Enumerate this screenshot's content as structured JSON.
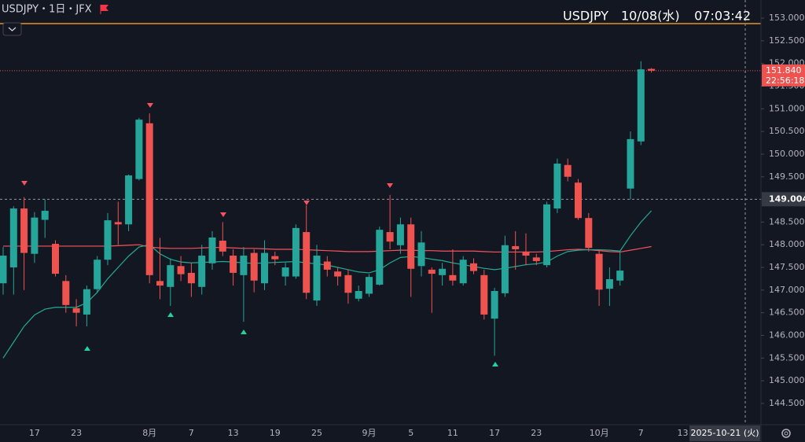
{
  "chart_data": {
    "type": "candlestick",
    "title": "USDJPY・1日・JFX",
    "header": {
      "symbol": "USDJPY",
      "date": "10/08(水)",
      "time": "07:03:42"
    },
    "categories": [
      null,
      null,
      null,
      "17",
      null,
      null,
      null,
      "23",
      null,
      null,
      null,
      null,
      null,
      null,
      "8月",
      null,
      null,
      null,
      "7",
      null,
      null,
      null,
      "13",
      null,
      null,
      null,
      "19",
      null,
      null,
      null,
      "25",
      null,
      null,
      null,
      null,
      "9月",
      null,
      null,
      null,
      "5",
      null,
      null,
      null,
      "11",
      null,
      null,
      null,
      "17",
      null,
      null,
      null,
      "23",
      null,
      null,
      null,
      null,
      null,
      "10月",
      null,
      null,
      null,
      "7",
      null,
      null,
      null,
      "13"
    ],
    "open": [
      147.15,
      147.5,
      148.8,
      147.8,
      148.55,
      148.02,
      147.2,
      146.6,
      146.46,
      147.02,
      147.67,
      148.5,
      148.45,
      149.45,
      150.68,
      147.2,
      147.07,
      147.53,
      147.38,
      147.07,
      147.59,
      148.09,
      147.76,
      147.33,
      147.82,
      147.15,
      147.75,
      147.3,
      147.3,
      148.28,
      146.77,
      147.63,
      147.41,
      147.33,
      146.81,
      146.92,
      147.12,
      148.28,
      147.99,
      148.45,
      147.53,
      147.45,
      147.33,
      147.33,
      147.15,
      147.59,
      147.33,
      146.37,
      146.93,
      147.97,
      147.85,
      147.72,
      147.55,
      148.8,
      149.76,
      149.37,
      148.59,
      147.8,
      147.03,
      147.21,
      149.24,
      150.28,
      151.88,
      null,
      null,
      null
    ],
    "high": [
      147.95,
      148.85,
      149.05,
      148.72,
      149.0,
      148.1,
      147.33,
      146.8,
      147.1,
      147.75,
      148.7,
      148.95,
      149.55,
      150.8,
      150.9,
      148.15,
      147.7,
      147.75,
      147.6,
      148.0,
      148.3,
      148.5,
      147.9,
      147.95,
      147.9,
      148.1,
      147.85,
      147.6,
      148.45,
      148.87,
      148.0,
      147.75,
      147.5,
      147.45,
      147.1,
      147.35,
      148.4,
      149.1,
      148.6,
      148.6,
      148.3,
      147.5,
      147.6,
      147.9,
      147.75,
      147.7,
      147.45,
      147.05,
      148.2,
      148.3,
      148.25,
      147.8,
      148.95,
      149.9,
      149.9,
      149.45,
      148.7,
      147.9,
      147.5,
      147.85,
      150.5,
      152.05,
      151.9,
      null,
      null,
      null
    ],
    "low": [
      146.9,
      146.9,
      147.0,
      147.6,
      148.15,
      147.3,
      146.5,
      146.2,
      146.2,
      146.95,
      147.55,
      148.0,
      148.3,
      149.42,
      147.15,
      146.8,
      146.65,
      147.2,
      146.85,
      146.9,
      147.45,
      147.75,
      147.1,
      146.3,
      146.95,
      147.0,
      147.55,
      147.1,
      147.25,
      146.8,
      146.65,
      147.3,
      147.1,
      146.7,
      146.75,
      146.85,
      147.1,
      147.9,
      147.8,
      146.85,
      147.3,
      146.5,
      147.1,
      147.1,
      147.1,
      147.35,
      146.35,
      145.55,
      146.85,
      147.45,
      147.55,
      147.55,
      147.5,
      148.7,
      149.4,
      148.55,
      147.85,
      146.65,
      146.65,
      147.1,
      149.0,
      150.2,
      151.8,
      null,
      null,
      null
    ],
    "close": [
      147.76,
      148.8,
      147.82,
      148.6,
      148.75,
      147.36,
      146.67,
      146.5,
      147.02,
      147.67,
      148.54,
      148.45,
      149.53,
      150.76,
      147.33,
      147.1,
      147.55,
      147.35,
      147.15,
      147.76,
      148.16,
      147.85,
      147.38,
      147.76,
      147.21,
      147.82,
      147.68,
      147.5,
      148.37,
      146.94,
      147.76,
      147.45,
      147.3,
      146.94,
      146.98,
      147.29,
      148.33,
      148.07,
      148.45,
      147.47,
      148.05,
      147.36,
      147.47,
      147.21,
      147.67,
      147.42,
      146.46,
      146.98,
      147.99,
      147.9,
      147.76,
      147.64,
      148.89,
      149.79,
      149.5,
      148.59,
      147.93,
      147.01,
      147.24,
      147.43,
      150.33,
      151.87,
      151.84,
      null,
      null,
      null
    ],
    "up_color": "#26a69a",
    "down_color": "#ef5350",
    "ma_lines": [
      {
        "color": "#f7525f",
        "values": [
          147.97,
          147.97,
          147.97,
          147.97,
          147.97,
          147.97,
          147.97,
          147.97,
          147.97,
          147.97,
          147.97,
          147.98,
          147.99,
          148.0,
          147.95,
          147.93,
          147.92,
          147.92,
          147.92,
          147.93,
          147.94,
          147.94,
          147.93,
          147.92,
          147.92,
          147.91,
          147.9,
          147.9,
          147.9,
          147.89,
          147.88,
          147.87,
          147.86,
          147.85,
          147.85,
          147.85,
          147.86,
          147.87,
          147.88,
          147.88,
          147.87,
          147.87,
          147.86,
          147.86,
          147.86,
          147.86,
          147.85,
          147.84,
          147.84,
          147.84,
          147.84,
          147.84,
          147.85,
          147.87,
          147.89,
          147.9,
          147.89,
          147.87,
          147.85,
          147.84,
          147.88,
          147.92,
          147.96,
          null,
          null,
          null
        ]
      },
      {
        "color": "#22ab94",
        "values": [
          145.5,
          145.85,
          146.2,
          146.45,
          146.58,
          146.62,
          146.62,
          146.62,
          146.72,
          146.95,
          147.25,
          147.5,
          147.75,
          147.95,
          148.0,
          147.8,
          147.68,
          147.62,
          147.6,
          147.61,
          147.62,
          147.63,
          147.62,
          147.6,
          147.59,
          147.6,
          147.61,
          147.62,
          147.63,
          147.6,
          147.58,
          147.55,
          147.5,
          147.45,
          147.4,
          147.38,
          147.45,
          147.6,
          147.72,
          147.74,
          147.72,
          147.68,
          147.65,
          147.6,
          147.56,
          147.52,
          147.48,
          147.45,
          147.48,
          147.52,
          147.56,
          147.58,
          147.62,
          147.75,
          147.85,
          147.88,
          147.89,
          147.89,
          147.88,
          147.86,
          148.2,
          148.5,
          148.75,
          null,
          null,
          null
        ]
      }
    ],
    "ylim": [
      144.03,
      153.4
    ],
    "yticks": [
      {
        "value": 144.5,
        "label": "144.500"
      },
      {
        "value": 145,
        "label": "145.000"
      },
      {
        "value": 145.5,
        "label": "145.500"
      },
      {
        "value": 146,
        "label": "146.000"
      },
      {
        "value": 146.5,
        "label": "146.500"
      },
      {
        "value": 147,
        "label": "147.000"
      },
      {
        "value": 147.5,
        "label": "147.500"
      },
      {
        "value": 148,
        "label": "148.000"
      },
      {
        "value": 148.5,
        "label": "148.500"
      },
      {
        "value": 149,
        "label": "149.000"
      },
      {
        "value": 149.5,
        "label": "149.500"
      },
      {
        "value": 150,
        "label": "150.000"
      },
      {
        "value": 150.5,
        "label": "150.500"
      },
      {
        "value": 151,
        "label": "151.000"
      },
      {
        "value": 151.5,
        "label": "151.500"
      },
      {
        "value": 152,
        "label": "152.000"
      },
      {
        "value": 152.5,
        "label": "152.500"
      },
      {
        "value": 153,
        "label": "153.000"
      }
    ],
    "horizontal_line": {
      "value": 152.88,
      "color": "#e3922d"
    },
    "last_price": {
      "value": 151.84,
      "label": "151.840"
    },
    "countdown": "22:56:18",
    "crosshair_price": {
      "value": 149.004,
      "label": "149.004"
    },
    "crosshair_date": "2025-10-21 (火)"
  }
}
